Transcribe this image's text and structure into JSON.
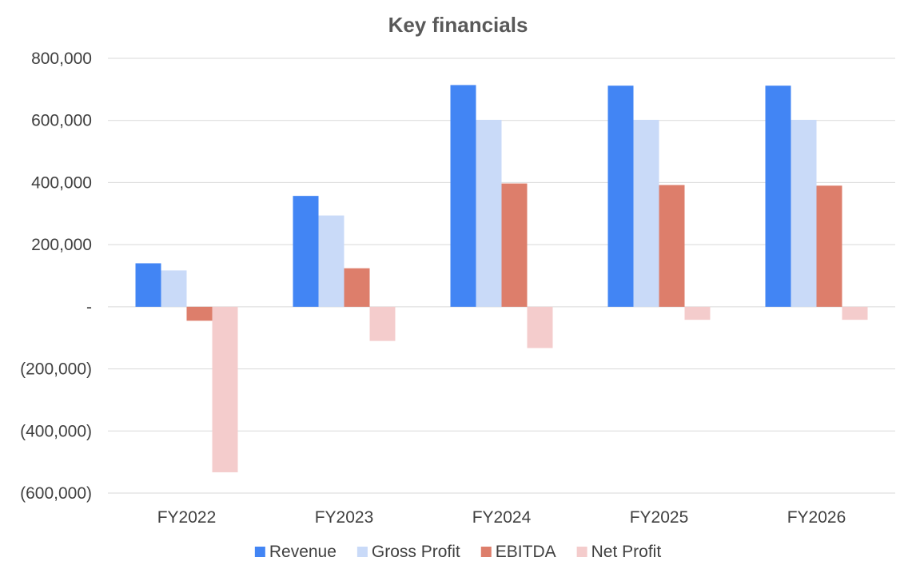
{
  "chart_data": {
    "type": "bar",
    "title": "Key financials",
    "xlabel": "",
    "ylabel": "",
    "categories": [
      "FY2022",
      "FY2023",
      "FY2024",
      "FY2025",
      "FY2026"
    ],
    "series": [
      {
        "name": "Revenue",
        "color": "#4285f4",
        "values": [
          140000,
          357000,
          714000,
          712000,
          712000
        ]
      },
      {
        "name": "Gross Profit",
        "color": "#c9daf8",
        "values": [
          117000,
          294000,
          602000,
          602000,
          602000
        ]
      },
      {
        "name": "EBITDA",
        "color": "#dd7e6b",
        "values": [
          -45000,
          124000,
          397000,
          392000,
          390000
        ]
      },
      {
        "name": "Net Profit",
        "color": "#f4cccc",
        "values": [
          -533000,
          -110000,
          -133000,
          -42000,
          -42000
        ]
      }
    ],
    "ylim": [
      -600000,
      800000
    ],
    "yticks": [
      {
        "value": 800000,
        "label": "800,000"
      },
      {
        "value": 600000,
        "label": "600,000"
      },
      {
        "value": 400000,
        "label": "400,000"
      },
      {
        "value": 200000,
        "label": "200,000"
      },
      {
        "value": 0,
        "label": "-"
      },
      {
        "value": -200000,
        "label": "(200,000)"
      },
      {
        "value": -400000,
        "label": "(400,000)"
      },
      {
        "value": -600000,
        "label": "(600,000)"
      }
    ],
    "grid": true,
    "legend_position": "bottom"
  }
}
